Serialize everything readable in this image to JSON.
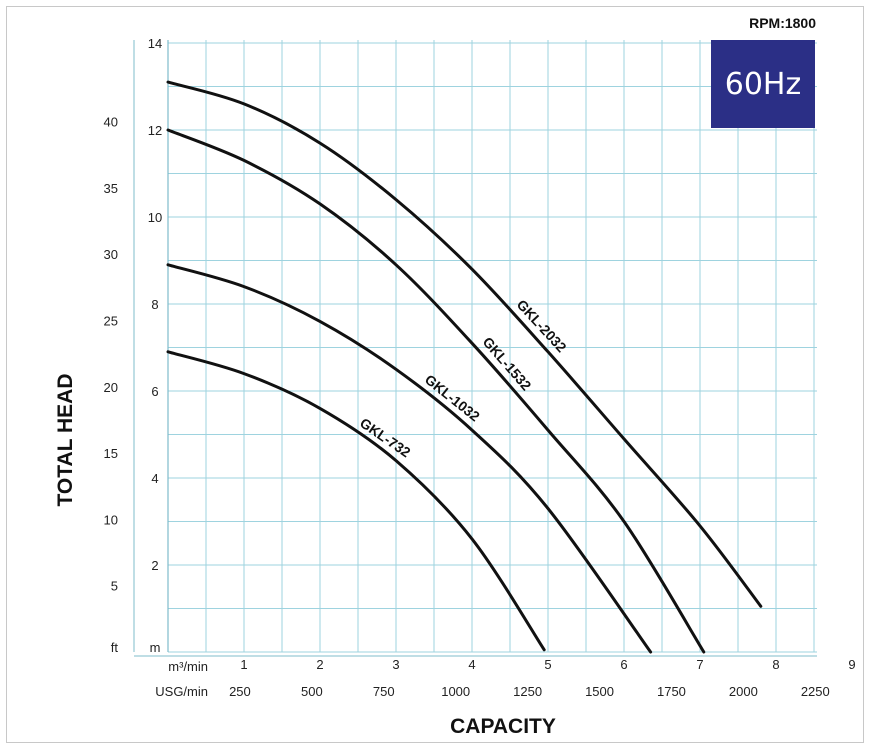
{
  "badge": {
    "frequency": "60Hz",
    "rpm": "RPM:1800",
    "color": "#2b2f86"
  },
  "chart_data": {
    "type": "line",
    "xlabel": "CAPACITY",
    "ylabel": "TOTAL HEAD",
    "xlim": [
      0,
      9
    ],
    "ylim": [
      0,
      14
    ],
    "grid": true,
    "grid_color": "#9ed3df",
    "line_color": "#111111",
    "y_ticks_m": [
      2,
      4,
      6,
      8,
      10,
      12,
      14
    ],
    "y_ticks_ft": [
      5,
      10,
      15,
      20,
      25,
      30,
      35,
      40
    ],
    "y_unit_m": "m",
    "y_unit_ft": "ft",
    "x_ticks_m3": [
      1,
      2,
      3,
      4,
      5,
      6,
      7,
      8,
      9
    ],
    "x_unit_m3": "m³/min",
    "x_ticks_usg": [
      250,
      500,
      750,
      1000,
      1250,
      1500,
      1750,
      2000,
      2250
    ],
    "x_unit_usg": "USG/min",
    "series": [
      {
        "name": "GKL-2032",
        "x": [
          0,
          1,
          2,
          3,
          4,
          5,
          6,
          7,
          7.8
        ],
        "y": [
          13.1,
          12.6,
          11.7,
          10.4,
          8.8,
          6.9,
          4.9,
          2.9,
          1.05
        ]
      },
      {
        "name": "GKL-1532",
        "x": [
          0,
          1,
          2,
          3,
          4,
          5,
          6,
          7.05
        ],
        "y": [
          12.0,
          11.3,
          10.3,
          8.9,
          7.1,
          5.1,
          3.0,
          0.0
        ]
      },
      {
        "name": "GKL-1032",
        "x": [
          0,
          1,
          2,
          3,
          4,
          5,
          6.35
        ],
        "y": [
          8.9,
          8.4,
          7.6,
          6.5,
          5.1,
          3.3,
          0.0
        ]
      },
      {
        "name": "GKL-732",
        "x": [
          0,
          1,
          2,
          3,
          4,
          4.95
        ],
        "y": [
          6.9,
          6.4,
          5.6,
          4.4,
          2.6,
          0.05
        ]
      }
    ]
  }
}
